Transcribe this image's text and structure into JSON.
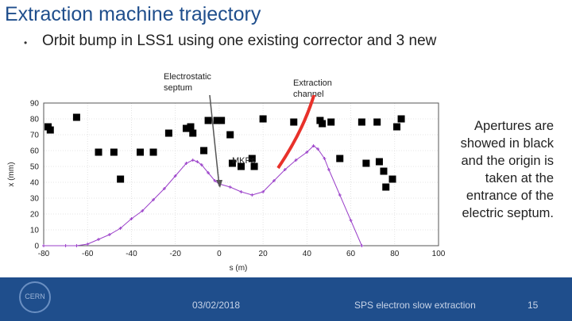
{
  "slide": {
    "title": "Extraction machine trajectory",
    "bullet": "Orbit bump in LSS1 using one existing corrector and 3 new",
    "bullet_marker": "•",
    "label_septum_line1": "Electrostatic",
    "label_septum_line2": "septum",
    "label_channel_line1": "Extraction",
    "label_channel_line2": "channel",
    "label_mkps": "MKPs",
    "right_note": "Apertures are showed in black and the origin is taken at the entrance of the electric septum.",
    "footer_date": "03/02/2018",
    "footer_title": "SPS electron slow extraction",
    "footer_page": "15",
    "logo_text": "CERN"
  },
  "colors": {
    "title": "#1f4e8c",
    "footer": "#1f4e8c",
    "trajectory": "#9a3fc9",
    "arrow": "#e8312a",
    "aperture": "#000000"
  },
  "chart_data": {
    "type": "scatter",
    "xlabel": "s (m)",
    "ylabel": "x (mm)",
    "xlim": [
      -80,
      100
    ],
    "ylim": [
      0,
      90
    ],
    "xticks": [
      -80,
      -60,
      -40,
      -20,
      0,
      20,
      40,
      60,
      80,
      100
    ],
    "yticks": [
      0,
      10,
      20,
      30,
      40,
      50,
      60,
      70,
      80,
      90
    ],
    "grid": true,
    "series": [
      {
        "kind": "line",
        "x": [
          -80,
          -70,
          -65,
          -60,
          -55,
          -50,
          -45,
          -40,
          -35,
          -30,
          -25,
          -20,
          -15,
          -12,
          -10,
          -8,
          -5,
          -2,
          0,
          5,
          10,
          15,
          20,
          25,
          30,
          35,
          40,
          43,
          45,
          48,
          50,
          55,
          60,
          65
        ],
        "y": [
          0,
          0,
          0,
          1,
          4,
          7,
          11,
          17,
          22,
          29,
          36,
          44,
          52,
          54,
          53,
          51,
          46,
          41,
          39,
          37,
          34,
          32,
          34,
          41,
          48,
          54,
          59,
          63,
          61,
          55,
          48,
          32,
          16,
          0
        ]
      },
      {
        "kind": "apertures",
        "x": [
          -78,
          -77,
          -65,
          -55,
          -48,
          -45,
          -36,
          -30,
          -23,
          -15,
          -13,
          -12,
          -7,
          -5,
          -1,
          1,
          5,
          6,
          10,
          15,
          16,
          20,
          34,
          46,
          47,
          51,
          55,
          65,
          67,
          72,
          73,
          75,
          76,
          79,
          81,
          83
        ],
        "y": [
          75,
          73,
          81,
          59,
          59,
          42,
          59,
          59,
          71,
          74,
          75,
          71,
          60,
          79,
          79,
          79,
          70,
          52,
          50,
          55,
          50,
          80,
          78,
          79,
          77,
          78,
          55,
          78,
          52,
          78,
          53,
          47,
          37,
          42,
          75,
          80
        ]
      }
    ]
  }
}
